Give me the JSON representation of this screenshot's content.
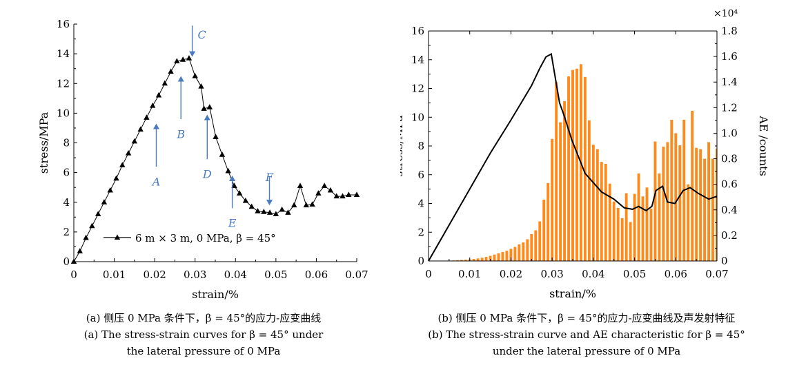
{
  "panel_a": {
    "legend": "6 m × 3 m, 0 MPa, β = 45°",
    "caption_zh": "(a) 侧压 0 MPa 条件下，β = 45°的应力-应变曲线",
    "caption_en_1": "(a) The stress-strain curves for β = 45° under",
    "caption_en_2": "the lateral pressure of 0 MPa",
    "annotation_color": "#4a7bc0",
    "annotations": [
      {
        "label": "A",
        "x": 0.0204,
        "y_tip": 9.3,
        "y_tail": 6.4,
        "direction": "up",
        "label_y": 5.6
      },
      {
        "label": "B",
        "x": 0.0265,
        "y_tip": 12.5,
        "y_tail": 9.6,
        "direction": "up",
        "label_y": 8.8
      },
      {
        "label": "C",
        "x": 0.0293,
        "y_tip": 13.8,
        "y_tail": 15.9,
        "direction": "down",
        "label_y": 15.5
      },
      {
        "label": "D",
        "x": 0.033,
        "y_tip": 9.9,
        "y_tail": 6.9,
        "direction": "up",
        "label_y": 6.1
      },
      {
        "label": "E",
        "x": 0.0392,
        "y_tip": 5.8,
        "y_tail": 3.6,
        "direction": "up",
        "label_y": 2.8
      },
      {
        "label": "F",
        "x": 0.0484,
        "y_tip": 3.8,
        "y_tail": 5.7,
        "direction": "down",
        "label_y": 5.9
      }
    ]
  },
  "panel_b": {
    "exponent_label": "×10⁴",
    "caption_zh": "(b) 侧压 0 MPa 条件下，β = 45°的应力-应变曲线及声发射特征",
    "caption_en_1": "(b) The stress-strain curve and AE characteristic for β = 45°",
    "caption_en_2": "under the lateral pressure of 0 MPa",
    "bar_color": "#ff8a1c",
    "line_color": "#000000"
  },
  "chart_data": [
    {
      "type": "line",
      "xlabel": "strain/%",
      "ylabel": "stress/MPa",
      "xlim": [
        0,
        0.07
      ],
      "ylim": [
        0,
        16
      ],
      "xticks": [
        0,
        0.01,
        0.02,
        0.03,
        0.04,
        0.05,
        0.06,
        0.07
      ],
      "yticks": [
        0,
        2,
        4,
        6,
        8,
        10,
        12,
        14,
        16
      ],
      "xtick_labels": [
        "0",
        "0.01",
        "0.02",
        "0.03",
        "0.04",
        "0.05",
        "0.06",
        "0.07"
      ],
      "ytick_labels": [
        "0",
        "2",
        "4",
        "6",
        "8",
        "10",
        "12",
        "14",
        "16"
      ],
      "legend_position": "lower-left",
      "series": [
        {
          "name": "6 m × 3 m, 0 MPa, β = 45°",
          "marker": "triangle",
          "x": [
            0,
            0.0015,
            0.003,
            0.0045,
            0.006,
            0.0075,
            0.009,
            0.0105,
            0.012,
            0.0135,
            0.015,
            0.0165,
            0.018,
            0.0195,
            0.021,
            0.0225,
            0.024,
            0.0255,
            0.027,
            0.0285,
            0.03,
            0.0315,
            0.0322,
            0.0336,
            0.0351,
            0.0367,
            0.0382,
            0.0397,
            0.041,
            0.0425,
            0.044,
            0.0455,
            0.047,
            0.0485,
            0.05,
            0.0515,
            0.053,
            0.0545,
            0.056,
            0.0575,
            0.059,
            0.0605,
            0.062,
            0.0635,
            0.065,
            0.0665,
            0.068,
            0.07
          ],
          "y": [
            0,
            0.7,
            1.6,
            2.4,
            3.2,
            4.0,
            4.8,
            5.6,
            6.5,
            7.3,
            8.1,
            8.9,
            9.7,
            10.5,
            11.2,
            12.0,
            12.8,
            13.5,
            13.6,
            13.7,
            12.5,
            11.8,
            10.3,
            10.4,
            8.4,
            7.2,
            6.1,
            5.1,
            4.6,
            4.1,
            3.7,
            3.4,
            3.35,
            3.3,
            3.2,
            3.5,
            3.3,
            3.8,
            5.1,
            3.8,
            3.85,
            4.6,
            5.1,
            4.8,
            4.4,
            4.4,
            4.5,
            4.5
          ]
        }
      ]
    },
    {
      "type": "bar",
      "xlabel": "strain/%",
      "ylabel": "stress/MPa",
      "y2label": "AE /counts",
      "xlim": [
        0,
        0.07
      ],
      "ylim": [
        0,
        16
      ],
      "y2lim": [
        0,
        18000
      ],
      "xticks": [
        0,
        0.01,
        0.02,
        0.03,
        0.04,
        0.05,
        0.06,
        0.07
      ],
      "yticks": [
        0,
        2,
        4,
        6,
        8,
        10,
        12,
        14,
        16
      ],
      "y2ticks": [
        0,
        2000,
        4000,
        6000,
        8000,
        10000,
        12000,
        14000,
        16000,
        18000
      ],
      "xtick_labels": [
        "0",
        "0.01",
        "0.02",
        "0.03",
        "0.04",
        "0.05",
        "0.06",
        "0.07"
      ],
      "ytick_labels": [
        "0",
        "2",
        "4",
        "6",
        "8",
        "10",
        "12",
        "14",
        "16"
      ],
      "y2tick_labels": [
        "0",
        "0.2",
        "0.4",
        "0.6",
        "0.8",
        "1.0",
        "1.2",
        "1.4",
        "1.6",
        "1.8"
      ],
      "bars": {
        "name": "AE counts",
        "x": [
          0.006,
          0.007,
          0.008,
          0.009,
          0.01,
          0.011,
          0.012,
          0.013,
          0.014,
          0.015,
          0.016,
          0.017,
          0.018,
          0.019,
          0.02,
          0.021,
          0.022,
          0.023,
          0.024,
          0.025,
          0.026,
          0.027,
          0.028,
          0.029,
          0.03,
          0.031,
          0.032,
          0.033,
          0.034,
          0.035,
          0.036,
          0.037,
          0.038,
          0.039,
          0.04,
          0.041,
          0.042,
          0.043,
          0.044,
          0.045,
          0.046,
          0.047,
          0.048,
          0.049,
          0.05,
          0.051,
          0.052,
          0.053,
          0.054,
          0.055,
          0.056,
          0.057,
          0.058,
          0.059,
          0.06,
          0.061,
          0.062,
          0.063,
          0.064,
          0.065,
          0.066,
          0.067,
          0.068,
          0.069,
          0.07
        ],
        "values": [
          40,
          60,
          80,
          100,
          130,
          160,
          200,
          250,
          320,
          400,
          500,
          600,
          700,
          800,
          950,
          1100,
          1300,
          1450,
          1700,
          2100,
          2400,
          3100,
          4800,
          6100,
          9550,
          14000,
          10850,
          12500,
          14450,
          14950,
          15050,
          15400,
          14400,
          11000,
          9100,
          8750,
          7750,
          7600,
          6050,
          4650,
          4150,
          3350,
          5300,
          3050,
          5250,
          6850,
          5050,
          5750,
          4100,
          9350,
          6850,
          8950,
          9300,
          11050,
          10000,
          9050,
          11050,
          6000,
          11750,
          8850,
          8750,
          8000,
          9300,
          8000,
          8800
        ]
      },
      "series": [
        {
          "name": "stress",
          "x": [
            0,
            0.005,
            0.01,
            0.015,
            0.02,
            0.025,
            0.027,
            0.0285,
            0.0298,
            0.0318,
            0.0328,
            0.0348,
            0.038,
            0.042,
            0.045,
            0.0475,
            0.0495,
            0.051,
            0.0528,
            0.0542,
            0.0552,
            0.0568,
            0.058,
            0.0598,
            0.0618,
            0.0635,
            0.0655,
            0.068,
            0.07
          ],
          "y": [
            0,
            2.5,
            5.0,
            7.5,
            9.8,
            12.2,
            13.4,
            14.2,
            14.4,
            11.0,
            10.2,
            8.4,
            6.1,
            4.8,
            4.3,
            3.7,
            3.6,
            3.8,
            3.5,
            3.8,
            4.9,
            5.2,
            4.1,
            4.0,
            4.9,
            5.1,
            4.7,
            4.3,
            4.5
          ]
        }
      ]
    }
  ]
}
